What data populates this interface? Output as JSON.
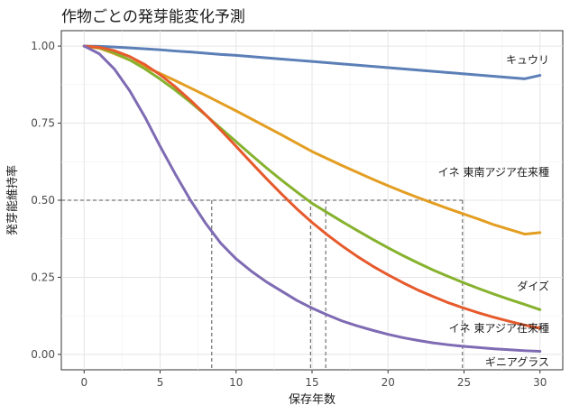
{
  "chart_data": {
    "type": "line",
    "title": "作物ごとの発芽能変化予測",
    "xlabel": "保存年数",
    "ylabel": "発芽能維持率",
    "xlim": [
      -1.5,
      31.5
    ],
    "ylim": [
      -0.05,
      1.05
    ],
    "xticks": [
      0,
      5,
      10,
      15,
      20,
      25,
      30
    ],
    "yticks": [
      0,
      0.25,
      0.5,
      0.75,
      1.0
    ],
    "xtick_labels": [
      "0",
      "5",
      "10",
      "15",
      "20",
      "25",
      "30"
    ],
    "ytick_labels": [
      "0.00",
      "0.25",
      "0.50",
      "0.75",
      "1.00"
    ],
    "grid": true,
    "legend": "none (labels at line ends)",
    "x": [
      0,
      1,
      2,
      3,
      4,
      5,
      6,
      7,
      8,
      9,
      10,
      11,
      12,
      13,
      14,
      15,
      16,
      17,
      18,
      19,
      20,
      21,
      22,
      23,
      24,
      25,
      26,
      27,
      28,
      29,
      30
    ],
    "series": [
      {
        "name": "キュウリ",
        "color": "#5b7fb6",
        "values": [
          1.0,
          0.999,
          0.997,
          0.994,
          0.991,
          0.988,
          0.984,
          0.981,
          0.977,
          0.973,
          0.97,
          0.966,
          0.962,
          0.958,
          0.954,
          0.95,
          0.946,
          0.942,
          0.938,
          0.934,
          0.93,
          0.926,
          0.922,
          0.918,
          0.914,
          0.91,
          0.906,
          0.902,
          0.898,
          0.894,
          0.905
        ]
      },
      {
        "name": "イネ 東南アジア在来種",
        "color": "#e39e22",
        "values": [
          1.0,
          0.993,
          0.975,
          0.955,
          0.933,
          0.911,
          0.888,
          0.864,
          0.84,
          0.815,
          0.79,
          0.764,
          0.738,
          0.712,
          0.685,
          0.658,
          0.635,
          0.612,
          0.59,
          0.568,
          0.547,
          0.527,
          0.508,
          0.49,
          0.472,
          0.455,
          0.438,
          0.42,
          0.405,
          0.39,
          0.395
        ]
      },
      {
        "name": "ダイズ",
        "color": "#86b22e",
        "values": [
          1.0,
          0.995,
          0.978,
          0.955,
          0.926,
          0.893,
          0.857,
          0.818,
          0.776,
          0.733,
          0.69,
          0.647,
          0.605,
          0.565,
          0.527,
          0.49,
          0.46,
          0.43,
          0.401,
          0.373,
          0.346,
          0.32,
          0.296,
          0.273,
          0.252,
          0.232,
          0.213,
          0.195,
          0.178,
          0.162,
          0.145
        ]
      },
      {
        "name": "イネ 東アジア在来種",
        "color": "#e65a2c",
        "values": [
          1.0,
          0.996,
          0.985,
          0.966,
          0.94,
          0.907,
          0.868,
          0.824,
          0.777,
          0.727,
          0.675,
          0.622,
          0.57,
          0.52,
          0.472,
          0.428,
          0.388,
          0.351,
          0.317,
          0.286,
          0.258,
          0.232,
          0.208,
          0.187,
          0.167,
          0.15,
          0.134,
          0.12,
          0.107,
          0.095,
          0.085
        ]
      },
      {
        "name": "ギニアグラス",
        "color": "#7e6bb3",
        "values": [
          1.0,
          0.975,
          0.925,
          0.855,
          0.77,
          0.675,
          0.585,
          0.5,
          0.425,
          0.36,
          0.31,
          0.27,
          0.235,
          0.205,
          0.175,
          0.15,
          0.128,
          0.108,
          0.092,
          0.078,
          0.065,
          0.054,
          0.045,
          0.037,
          0.031,
          0.026,
          0.022,
          0.018,
          0.015,
          0.012,
          0.01
        ]
      }
    ],
    "reference_lines": {
      "y": 0.5,
      "x": [
        8.4,
        14.9,
        15.9,
        24.9
      ]
    }
  }
}
